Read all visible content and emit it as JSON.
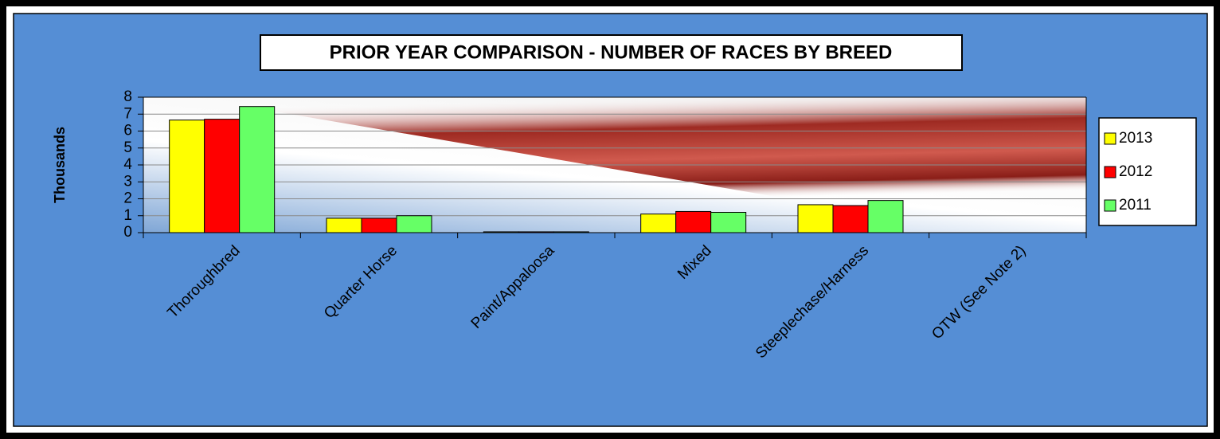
{
  "chart_data": {
    "type": "bar",
    "title": "PRIOR YEAR COMPARISON - NUMBER OF RACES BY BREED",
    "y_label": "Thousands",
    "categories": [
      "Thoroughbred",
      "Quarter Horse",
      "Paint/Appaloosa",
      "Mixed",
      "Steeplechase/Harness",
      "OTW (See Note 2)"
    ],
    "series": [
      {
        "name": "2013",
        "color": "#ffff00",
        "values": [
          6.65,
          0.85,
          0.05,
          1.1,
          1.65,
          0
        ]
      },
      {
        "name": "2012",
        "color": "#ff0000",
        "values": [
          6.7,
          0.85,
          0.05,
          1.25,
          1.6,
          0
        ]
      },
      {
        "name": "2011",
        "color": "#66ff66",
        "values": [
          7.45,
          1.0,
          0.05,
          1.2,
          1.9,
          0
        ]
      }
    ],
    "ylim": [
      0,
      8
    ],
    "yticks": [
      0,
      1,
      2,
      3,
      4,
      5,
      6,
      7,
      8
    ],
    "grid": true,
    "legend": "right"
  }
}
